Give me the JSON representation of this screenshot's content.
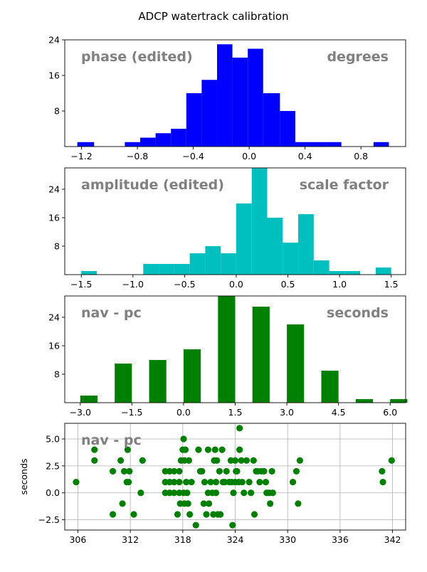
{
  "figure": {
    "suptitle": "ADCP watertrack calibration"
  },
  "chart_data": [
    {
      "type": "bar",
      "title": "",
      "annotations": {
        "left": "phase (edited)",
        "right": "degrees"
      },
      "xlabel": "",
      "ylabel": "",
      "xlim": [
        -1.32,
        1.12
      ],
      "ylim": [
        0,
        24
      ],
      "xticks": [
        -1.2,
        -0.8,
        -0.4,
        0.0,
        0.4,
        0.8
      ],
      "xtick_labels": [
        "−1.2",
        "−0.8",
        "−0.4",
        "0.0",
        "0.4",
        "0.8"
      ],
      "yticks": [
        8,
        16,
        24
      ],
      "ytick_labels": [
        "8",
        "16",
        "24"
      ],
      "color": "#0000ff",
      "bins": [
        {
          "x0": -1.23,
          "x1": -1.11,
          "count": 1
        },
        {
          "x0": -0.89,
          "x1": -0.78,
          "count": 1
        },
        {
          "x0": -0.78,
          "x1": -0.67,
          "count": 2
        },
        {
          "x0": -0.67,
          "x1": -0.56,
          "count": 3
        },
        {
          "x0": -0.56,
          "x1": -0.45,
          "count": 4
        },
        {
          "x0": -0.45,
          "x1": -0.34,
          "count": 12
        },
        {
          "x0": -0.34,
          "x1": -0.23,
          "count": 15
        },
        {
          "x0": -0.23,
          "x1": -0.12,
          "count": 23
        },
        {
          "x0": -0.12,
          "x1": -0.01,
          "count": 20
        },
        {
          "x0": -0.01,
          "x1": 0.1,
          "count": 22
        },
        {
          "x0": 0.1,
          "x1": 0.22,
          "count": 12
        },
        {
          "x0": 0.22,
          "x1": 0.33,
          "count": 8
        },
        {
          "x0": 0.33,
          "x1": 0.44,
          "count": 1
        },
        {
          "x0": 0.44,
          "x1": 0.55,
          "count": 1
        },
        {
          "x0": 0.55,
          "x1": 0.66,
          "count": 1
        },
        {
          "x0": 0.89,
          "x1": 1.0,
          "count": 1
        }
      ],
      "grid": false
    },
    {
      "type": "bar",
      "title": "",
      "annotations": {
        "left": "amplitude (edited)",
        "right": "scale factor"
      },
      "xlabel": "",
      "ylabel": "",
      "xlim": [
        -1.66,
        1.64
      ],
      "ylim": [
        0,
        30
      ],
      "xticks": [
        -1.5,
        -1.0,
        -0.5,
        0.0,
        0.5,
        1.0,
        1.5
      ],
      "xtick_labels": [
        "−1.5",
        "−1.0",
        "−0.5",
        "0.0",
        "0.5",
        "1.0",
        "1.5"
      ],
      "yticks": [
        8,
        16,
        24
      ],
      "ytick_labels": [
        "8",
        "16",
        "24"
      ],
      "color": "#00bfbf",
      "bins": [
        {
          "x0": -1.5,
          "x1": -1.35,
          "count": 1
        },
        {
          "x0": -0.9,
          "x1": -0.75,
          "count": 3
        },
        {
          "x0": -0.75,
          "x1": -0.6,
          "count": 3
        },
        {
          "x0": -0.6,
          "x1": -0.45,
          "count": 3
        },
        {
          "x0": -0.45,
          "x1": -0.3,
          "count": 6
        },
        {
          "x0": -0.3,
          "x1": -0.15,
          "count": 8
        },
        {
          "x0": -0.15,
          "x1": 0.0,
          "count": 6
        },
        {
          "x0": 0.0,
          "x1": 0.15,
          "count": 20
        },
        {
          "x0": 0.15,
          "x1": 0.3,
          "count": 30
        },
        {
          "x0": 0.3,
          "x1": 0.45,
          "count": 16
        },
        {
          "x0": 0.45,
          "x1": 0.6,
          "count": 9
        },
        {
          "x0": 0.6,
          "x1": 0.75,
          "count": 17
        },
        {
          "x0": 0.75,
          "x1": 0.9,
          "count": 4
        },
        {
          "x0": 0.9,
          "x1": 1.05,
          "count": 1
        },
        {
          "x0": 1.05,
          "x1": 1.2,
          "count": 1
        },
        {
          "x0": 1.35,
          "x1": 1.5,
          "count": 2
        }
      ],
      "grid": false
    },
    {
      "type": "bar",
      "title": "",
      "annotations": {
        "left": "nav - pc",
        "right": "seconds"
      },
      "xlabel": "",
      "ylabel": "",
      "xlim": [
        -3.45,
        6.45
      ],
      "ylim": [
        0,
        30
      ],
      "xticks": [
        -3.0,
        -1.5,
        0.0,
        1.5,
        3.0,
        4.5,
        6.0
      ],
      "xtick_labels": [
        "−3.0",
        "−1.5",
        "0.0",
        "1.5",
        "3.0",
        "4.5",
        "6.0"
      ],
      "yticks": [
        8,
        16,
        24
      ],
      "ytick_labels": [
        "8",
        "16",
        "24"
      ],
      "color": "#008000",
      "bins": [
        {
          "x0": -3.0,
          "x1": -2.5,
          "count": 2
        },
        {
          "x0": -2.0,
          "x1": -1.5,
          "count": 11
        },
        {
          "x0": -1.0,
          "x1": -0.5,
          "count": 12
        },
        {
          "x0": 0.0,
          "x1": 0.5,
          "count": 15
        },
        {
          "x0": 1.0,
          "x1": 1.5,
          "count": 30
        },
        {
          "x0": 2.0,
          "x1": 2.5,
          "count": 27
        },
        {
          "x0": 3.0,
          "x1": 3.5,
          "count": 22
        },
        {
          "x0": 4.0,
          "x1": 4.5,
          "count": 9
        },
        {
          "x0": 5.0,
          "x1": 5.5,
          "count": 1
        },
        {
          "x0": 6.0,
          "x1": 6.5,
          "count": 1
        }
      ],
      "grid": false
    },
    {
      "type": "scatter",
      "title": "",
      "annotations": {
        "left": "nav - pc",
        "right": ""
      },
      "xlabel": "",
      "ylabel": "seconds",
      "xlim": [
        304.5,
        343.5
      ],
      "ylim": [
        -3.45,
        6.45
      ],
      "xticks": [
        306,
        312,
        318,
        324,
        330,
        336,
        342
      ],
      "xtick_labels": [
        "306",
        "312",
        "318",
        "324",
        "330",
        "336",
        "342"
      ],
      "yticks": [
        -2.5,
        0.0,
        2.5,
        5.0
      ],
      "ytick_labels": [
        "−2.5",
        "0.0",
        "2.5",
        "5.0"
      ],
      "color": "#008000",
      "grid": true,
      "points": [
        [
          305.8,
          1
        ],
        [
          307.9,
          3
        ],
        [
          307.9,
          4
        ],
        [
          310,
          2
        ],
        [
          310,
          -2
        ],
        [
          310.9,
          3
        ],
        [
          311.1,
          -1
        ],
        [
          311.3,
          2
        ],
        [
          311.6,
          1
        ],
        [
          311.8,
          1
        ],
        [
          311.7,
          4
        ],
        [
          311.9,
          2
        ],
        [
          312.4,
          -2
        ],
        [
          313.2,
          0
        ],
        [
          313.4,
          3
        ],
        [
          316,
          2
        ],
        [
          316,
          1
        ],
        [
          316,
          0
        ],
        [
          316.5,
          2
        ],
        [
          316.5,
          1
        ],
        [
          316.5,
          0
        ],
        [
          317,
          2
        ],
        [
          317,
          1
        ],
        [
          317,
          0
        ],
        [
          317.4,
          -2
        ],
        [
          317.6,
          2
        ],
        [
          317.6,
          1
        ],
        [
          317.6,
          0
        ],
        [
          317.7,
          -1
        ],
        [
          317.8,
          3
        ],
        [
          318,
          4
        ],
        [
          318.1,
          5
        ],
        [
          318.1,
          0
        ],
        [
          318.2,
          3
        ],
        [
          318.2,
          -1
        ],
        [
          318.3,
          4
        ],
        [
          318.4,
          1
        ],
        [
          318.5,
          0
        ],
        [
          318.6,
          -1
        ],
        [
          318.7,
          3
        ],
        [
          318.8,
          -2
        ],
        [
          319,
          1
        ],
        [
          319.5,
          -3
        ],
        [
          319.8,
          4
        ],
        [
          320,
          2
        ],
        [
          320.2,
          2
        ],
        [
          320.4,
          -1
        ],
        [
          320.5,
          1
        ],
        [
          320.7,
          -2
        ],
        [
          320.9,
          0
        ],
        [
          320.9,
          4
        ],
        [
          321,
          -1
        ],
        [
          321.2,
          1
        ],
        [
          321.4,
          0
        ],
        [
          321.5,
          -2
        ],
        [
          321.6,
          3
        ],
        [
          321.7,
          4
        ],
        [
          321.8,
          1
        ],
        [
          321.8,
          0
        ],
        [
          321.9,
          3
        ],
        [
          322,
          -2
        ],
        [
          322.2,
          2
        ],
        [
          322.3,
          -2
        ],
        [
          322.5,
          4
        ],
        [
          322.6,
          1
        ],
        [
          322.8,
          1
        ],
        [
          323,
          2
        ],
        [
          323.3,
          1
        ],
        [
          323.5,
          3
        ],
        [
          323.6,
          1
        ],
        [
          323.7,
          -3
        ],
        [
          323.8,
          0
        ],
        [
          324,
          3
        ],
        [
          324,
          1
        ],
        [
          324.1,
          2
        ],
        [
          324.2,
          2
        ],
        [
          324.4,
          1
        ],
        [
          324.5,
          6
        ],
        [
          324.5,
          4
        ],
        [
          324.7,
          3
        ],
        [
          324.8,
          1
        ],
        [
          325,
          0
        ],
        [
          325.3,
          3
        ],
        [
          325.6,
          1
        ],
        [
          325.8,
          0
        ],
        [
          326.1,
          3
        ],
        [
          326.2,
          -2
        ],
        [
          326.4,
          2
        ],
        [
          326.6,
          2
        ],
        [
          326.8,
          1
        ],
        [
          327,
          2
        ],
        [
          327.3,
          2
        ],
        [
          327.5,
          1
        ],
        [
          327.6,
          0
        ],
        [
          327.9,
          0
        ],
        [
          328,
          -1
        ],
        [
          328.2,
          2
        ],
        [
          328.3,
          0
        ],
        [
          330.6,
          1
        ],
        [
          331,
          2
        ],
        [
          331.2,
          -1
        ],
        [
          331.4,
          3
        ],
        [
          340.8,
          2
        ],
        [
          340.9,
          1
        ],
        [
          341.9,
          3
        ]
      ]
    }
  ]
}
